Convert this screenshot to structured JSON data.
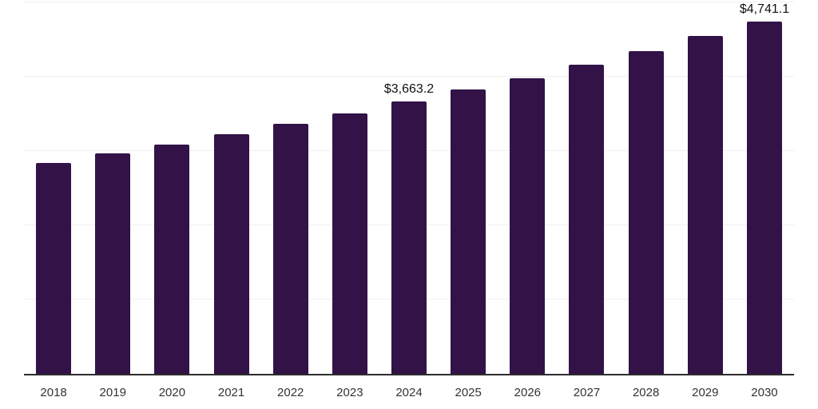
{
  "chart_data": {
    "type": "bar",
    "title": "",
    "xlabel": "",
    "ylabel": "",
    "categories": [
      "2018",
      "2019",
      "2020",
      "2021",
      "2022",
      "2023",
      "2024",
      "2025",
      "2026",
      "2027",
      "2028",
      "2029",
      "2030"
    ],
    "values": [
      2836,
      2964,
      3087,
      3225,
      3364,
      3503,
      3663.2,
      3823,
      3984,
      4165,
      4347,
      4550,
      4741.1
    ],
    "annotations": [
      {
        "category": "2024",
        "text": "$3,663.2"
      },
      {
        "category": "2030",
        "text": "$4,741.1"
      }
    ],
    "ylim": [
      0,
      5000
    ],
    "grid_interval": 1000,
    "grid": "horizontal",
    "legend": "none",
    "y_tick_labels": "none",
    "colors": {
      "bar": "#321247",
      "axis_line": "#2d2d2d",
      "gridline": "#f0f0f0",
      "tick_label": "#333333",
      "annotation_text": "#111111",
      "background": "#ffffff"
    }
  }
}
